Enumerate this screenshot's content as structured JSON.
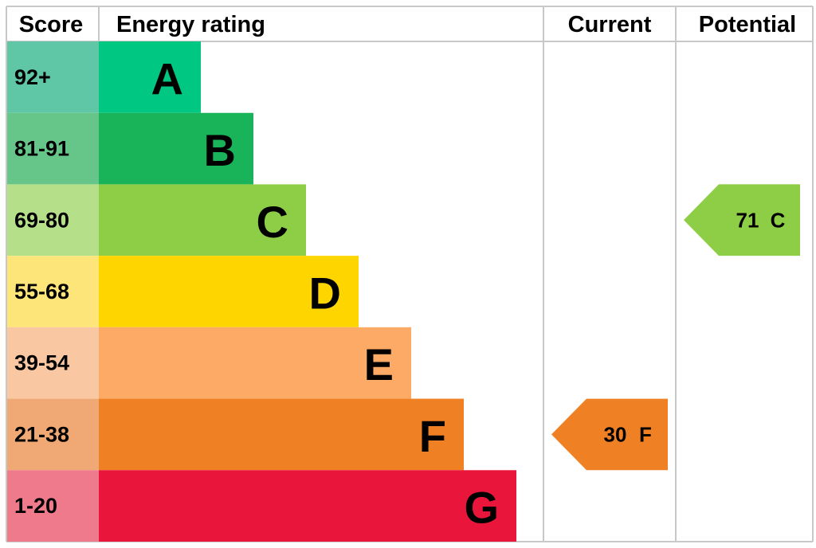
{
  "header": {
    "score": "Score",
    "energy_rating": "Energy rating",
    "current": "Current",
    "potential": "Potential"
  },
  "bands": [
    {
      "range": "92+",
      "letter": "A",
      "color": "#00c781",
      "light": "#5fc7a5"
    },
    {
      "range": "81-91",
      "letter": "B",
      "color": "#19b459",
      "light": "#66c68a"
    },
    {
      "range": "69-80",
      "letter": "C",
      "color": "#8dce46",
      "light": "#b6df8a"
    },
    {
      "range": "55-68",
      "letter": "D",
      "color": "#ffd500",
      "light": "#fde57a"
    },
    {
      "range": "39-54",
      "letter": "E",
      "color": "#fcaa65",
      "light": "#f9c8a2"
    },
    {
      "range": "21-38",
      "letter": "F",
      "color": "#ef8023",
      "light": "#f0a874"
    },
    {
      "range": "1-20",
      "letter": "G",
      "color": "#e9153b",
      "light": "#ee7a8b"
    }
  ],
  "current": {
    "score": 30,
    "band": "F"
  },
  "potential": {
    "score": 71,
    "band": "C"
  }
}
